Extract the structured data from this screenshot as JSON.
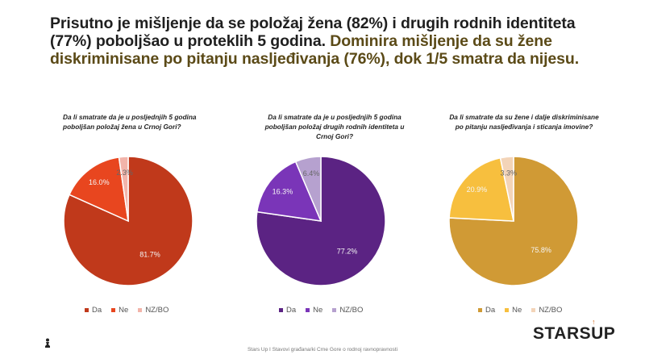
{
  "headline": {
    "part1": "Prisutno je mišljenje da se položaj žena (82%) i drugih rodnih identiteta (77%) poboljšao u proteklih 5 godina.",
    "part2": "Dominira mišljenje da su žene diskriminisane po pitanju nasljeđivanja (76%), dok 1/5 smatra da nijesu."
  },
  "legend_labels": [
    "Da",
    "Ne",
    "NZ/BO"
  ],
  "chart_data": [
    {
      "type": "pie",
      "title": "Da li smatrate da je u posljednjih 5 godina poboljšan položaj žena u Crnoj Gori?",
      "labels": [
        "Da",
        "Ne",
        "NZ/BO"
      ],
      "values": [
        81.7,
        16.0,
        2.3
      ],
      "value_labels": [
        "81.7%",
        "16.0%",
        "2.3%"
      ],
      "colors": [
        "#C0391B",
        "#E8461F",
        "#F2B4AA"
      ],
      "legend": "bottom"
    },
    {
      "type": "pie",
      "title": "Da li smatrate da je u posljednjih 5 godina poboljšan položaj drugih rodnih identiteta u Crnoj Gori?",
      "labels": [
        "Da",
        "Ne",
        "NZ/BO"
      ],
      "values": [
        77.2,
        16.3,
        6.4
      ],
      "value_labels": [
        "77.2%",
        "16.3%",
        "6.4%"
      ],
      "colors": [
        "#5B2383",
        "#7A35B8",
        "#B6A1CF"
      ],
      "legend": "bottom"
    },
    {
      "type": "pie",
      "title": "Da li smatrate da su žene i dalje diskriminisane po pitanju nasljeđivanja i sticanja imovine?",
      "labels": [
        "Da",
        "Ne",
        "NZ/BO"
      ],
      "values": [
        75.8,
        20.9,
        3.3
      ],
      "value_labels": [
        "75.8%",
        "20.9%",
        "3.3%"
      ],
      "colors": [
        "#D09A35",
        "#F7BF3E",
        "#F3D4B8"
      ],
      "legend": "bottom"
    }
  ],
  "footer": "Stars Up I Stavovi građana/ki Crne Gore o rodnoj ravnopravnosti",
  "logo": {
    "text": "STARSUP",
    "mark": "↑"
  }
}
